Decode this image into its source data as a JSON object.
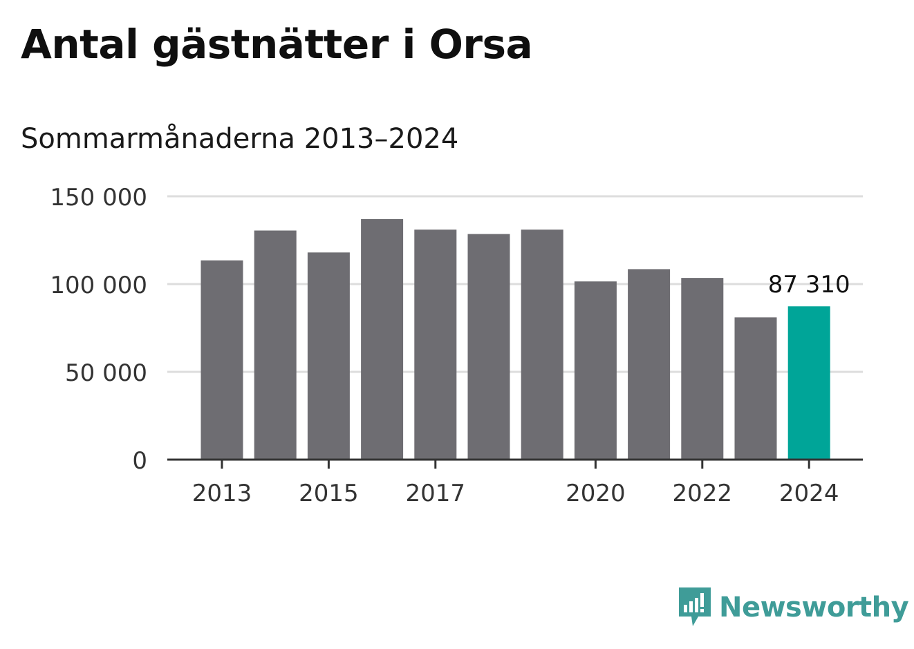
{
  "title": "Antal gästnätter i Orsa",
  "subtitle": "Sommarmånaderna 2013–2024",
  "brand": {
    "name": "Newsworthy",
    "icon": "newsworthy-bar-chart-logo"
  },
  "colors": {
    "bar": "#6e6d72",
    "highlight": "#00a598",
    "grid": "#dddddd",
    "axis": "#333333",
    "brand": "#3f9c98"
  },
  "chart_data": {
    "type": "bar",
    "categories": [
      "2013",
      "2014",
      "2015",
      "2016",
      "2017",
      "2018",
      "2019",
      "2020",
      "2021",
      "2022",
      "2023",
      "2024"
    ],
    "values": [
      113500,
      130500,
      118000,
      137000,
      131000,
      128500,
      131000,
      101500,
      108500,
      103500,
      81000,
      87310
    ],
    "x_tick_labels": [
      "2013",
      "",
      "2015",
      "",
      "2017",
      "",
      "",
      "2020",
      "",
      "2022",
      "",
      "2024"
    ],
    "y_ticks": [
      0,
      50000,
      100000,
      150000
    ],
    "y_tick_labels": [
      "0",
      "50 000",
      "100 000",
      "150 000"
    ],
    "ylim": [
      0,
      150000
    ],
    "highlight_index": 11,
    "annotation": {
      "index": 11,
      "text": "87 310"
    },
    "grid": true,
    "xlabel": "",
    "ylabel": ""
  }
}
